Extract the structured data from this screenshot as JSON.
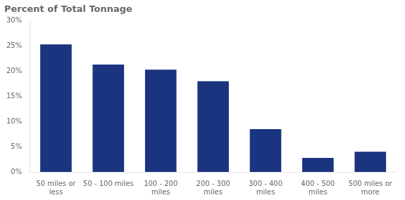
{
  "chart_data": {
    "type": "bar",
    "title": "Percent of Total Tonnage",
    "categories": [
      "50 miles or\nless",
      "50 - 100 miles",
      "100 - 200\nmiles",
      "200 - 300\nmiles",
      "300 - 400\nmiles",
      "400 - 500\nmiles",
      "500 miles or\nmore"
    ],
    "values": [
      25.3,
      21.3,
      20.3,
      18.0,
      8.5,
      2.8,
      4.0
    ],
    "color": "#1a3480",
    "ylim": [
      0,
      30
    ],
    "yticks": [
      {
        "value": 0,
        "label": "0%"
      },
      {
        "value": 5,
        "label": "5%"
      },
      {
        "value": 10,
        "label": "10%"
      },
      {
        "value": 15,
        "label": "15%"
      },
      {
        "value": 20,
        "label": "20%"
      },
      {
        "value": 25,
        "label": "25%"
      },
      {
        "value": 30,
        "label": "30%"
      }
    ],
    "grid": false
  }
}
